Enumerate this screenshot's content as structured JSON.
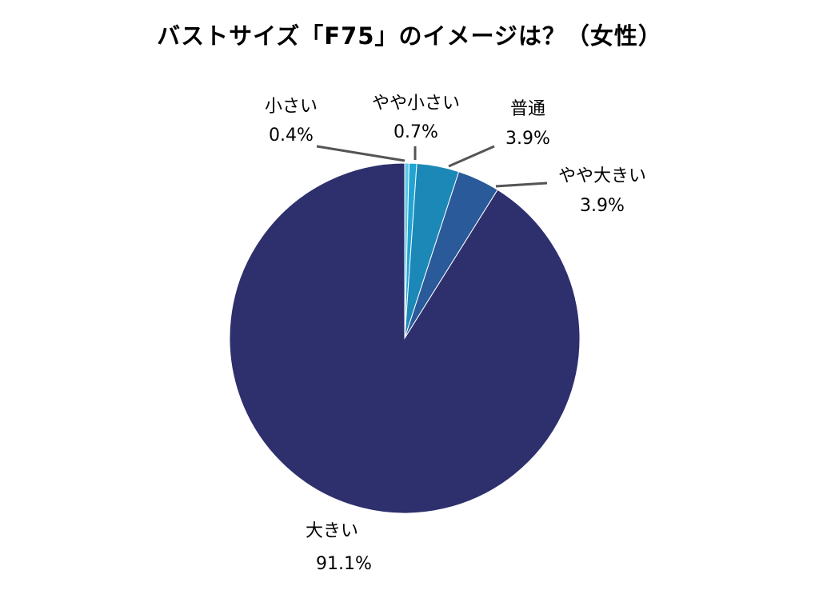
{
  "chart_data": {
    "type": "pie",
    "title": "バストサイズ「F75」のイメージは？（女性）",
    "categories": [
      "小さい",
      "やや小さい",
      "普通",
      "やや大きい",
      "大きい"
    ],
    "values": [
      0.4,
      0.7,
      3.9,
      3.9,
      91.1
    ],
    "value_labels": [
      "0.4%",
      "0.7%",
      "3.9%",
      "3.9%",
      "91.1%"
    ],
    "colors": [
      "#5BC8E6",
      "#21A4D2",
      "#1C88B8",
      "#2A5A99",
      "#2E2F6D"
    ],
    "start": "12 o'clock",
    "direction": "clockwise",
    "legend": "none",
    "data_labels": "outside with leader lines"
  }
}
